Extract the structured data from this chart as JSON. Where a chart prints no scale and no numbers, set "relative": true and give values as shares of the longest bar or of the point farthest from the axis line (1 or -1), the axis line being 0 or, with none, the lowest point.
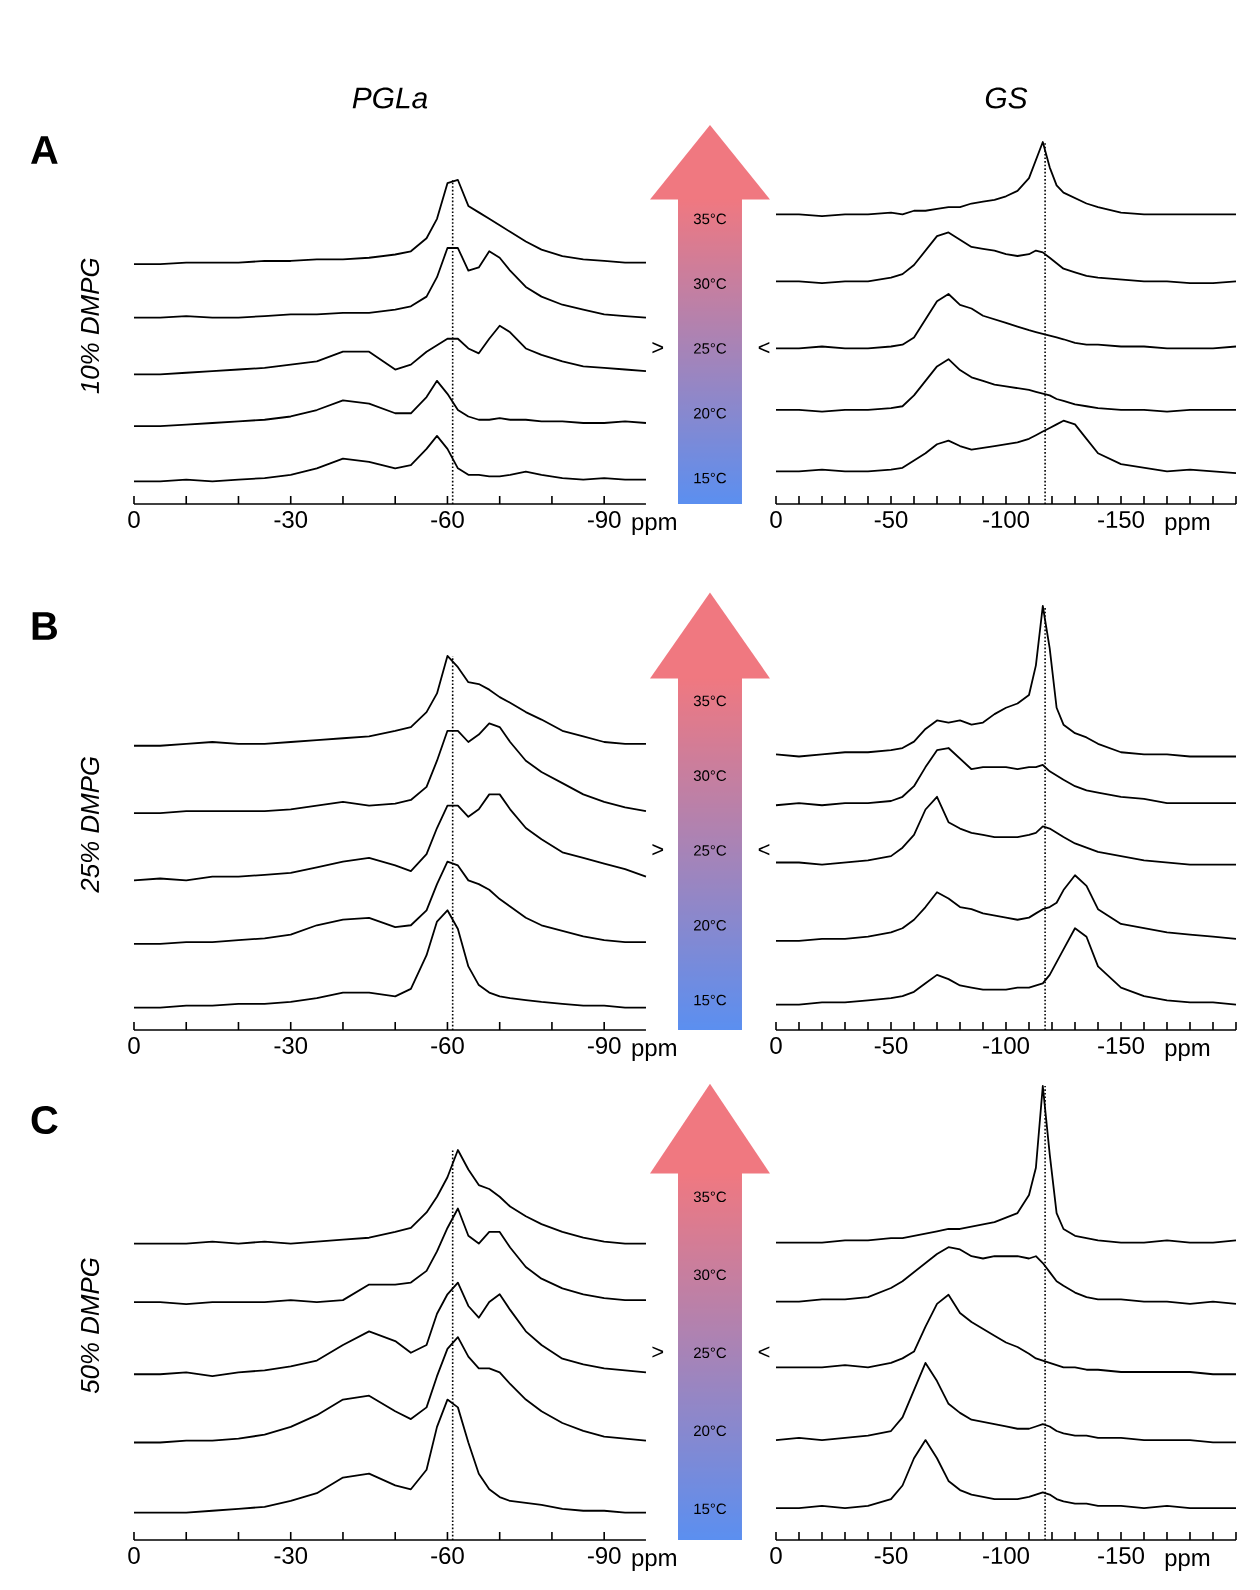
{
  "chart_data": [
    {
      "type": "line",
      "relative": true,
      "title": "PGLa",
      "ylabel": "10% DMPG",
      "xlabel": "ppm",
      "xlim": [
        0,
        -98
      ],
      "xticks": [
        0,
        {
          "value": -10,
          "label": null
        },
        {
          "value": -20,
          "label": null
        },
        -30,
        {
          "value": -40,
          "label": null
        },
        {
          "value": -50,
          "label": null
        },
        -60,
        {
          "value": -70,
          "label": null
        },
        {
          "value": -80,
          "label": null
        },
        -90
      ],
      "ref_lines": [
        {
          "axis": "x",
          "value": -61,
          "line_style": "dotted"
        }
      ],
      "annotations": [
        "A",
        "35°C",
        "30°C",
        "25°C",
        "20°C",
        "15°C",
        ">"
      ],
      "x": [
        0,
        -5,
        -10,
        -15,
        -20,
        -25,
        -30,
        -35,
        -40,
        -45,
        -50,
        -53,
        -56,
        -58,
        -60,
        -62,
        -64,
        -66,
        -68,
        -70,
        -72,
        -75,
        -78,
        -82,
        -86,
        -90,
        -94,
        -98
      ],
      "series": [
        {
          "color": "#000000",
          "values": [
            0.74,
            0.74,
            0.745,
            0.745,
            0.745,
            0.75,
            0.75,
            0.755,
            0.755,
            0.76,
            0.77,
            0.78,
            0.82,
            0.88,
            0.99,
            1.0,
            0.92,
            0.9,
            0.88,
            0.86,
            0.84,
            0.81,
            0.785,
            0.765,
            0.755,
            0.75,
            0.745,
            0.745
          ]
        },
        {
          "color": "#000000",
          "values": [
            0.575,
            0.575,
            0.58,
            0.575,
            0.575,
            0.58,
            0.585,
            0.585,
            0.59,
            0.59,
            0.6,
            0.61,
            0.64,
            0.7,
            0.79,
            0.79,
            0.72,
            0.73,
            0.78,
            0.76,
            0.72,
            0.67,
            0.64,
            0.615,
            0.6,
            0.585,
            0.58,
            0.575
          ]
        },
        {
          "color": "#000000",
          "values": [
            0.4,
            0.4,
            0.405,
            0.41,
            0.415,
            0.42,
            0.43,
            0.44,
            0.47,
            0.47,
            0.415,
            0.43,
            0.47,
            0.49,
            0.51,
            0.51,
            0.48,
            0.465,
            0.51,
            0.55,
            0.53,
            0.48,
            0.46,
            0.44,
            0.425,
            0.42,
            0.415,
            0.41
          ]
        },
        {
          "color": "#000000",
          "values": [
            0.24,
            0.24,
            0.245,
            0.25,
            0.255,
            0.26,
            0.27,
            0.29,
            0.32,
            0.31,
            0.28,
            0.28,
            0.33,
            0.38,
            0.34,
            0.29,
            0.27,
            0.26,
            0.26,
            0.265,
            0.26,
            0.26,
            0.255,
            0.255,
            0.25,
            0.25,
            0.255,
            0.25
          ]
        },
        {
          "color": "#000000",
          "values": [
            0.07,
            0.07,
            0.075,
            0.07,
            0.075,
            0.08,
            0.09,
            0.11,
            0.14,
            0.13,
            0.11,
            0.12,
            0.17,
            0.21,
            0.17,
            0.11,
            0.09,
            0.09,
            0.085,
            0.085,
            0.09,
            0.1,
            0.09,
            0.08,
            0.075,
            0.08,
            0.075,
            0.075
          ]
        }
      ]
    },
    {
      "type": "line",
      "relative": true,
      "title": "GS",
      "xlabel": "ppm",
      "xlim": [
        0,
        -200
      ],
      "xticks": [
        0,
        {
          "value": -10,
          "label": null
        },
        {
          "value": -20,
          "label": null
        },
        {
          "value": -30,
          "label": null
        },
        {
          "value": -40,
          "label": null
        },
        -50,
        {
          "value": -60,
          "label": null
        },
        {
          "value": -70,
          "label": null
        },
        {
          "value": -80,
          "label": null
        },
        {
          "value": -90,
          "label": null
        },
        -100,
        {
          "value": -110,
          "label": null
        },
        {
          "value": -120,
          "label": null
        },
        {
          "value": -130,
          "label": null
        },
        {
          "value": -140,
          "label": null
        },
        -150,
        {
          "value": -160,
          "label": null
        },
        {
          "value": -170,
          "label": null
        },
        {
          "value": -180,
          "label": null
        },
        {
          "value": -190,
          "label": null
        },
        {
          "value": -200,
          "label": null
        }
      ],
      "ref_lines": [
        {
          "axis": "x",
          "value": -117,
          "line_style": "dotted"
        }
      ],
      "annotations": [
        "<"
      ],
      "x": [
        0,
        -10,
        -20,
        -30,
        -40,
        -50,
        -55,
        -60,
        -65,
        -70,
        -75,
        -80,
        -85,
        -90,
        -95,
        -100,
        -105,
        -110,
        -113,
        -116,
        -119,
        -122,
        -125,
        -130,
        -135,
        -140,
        -150,
        -160,
        -170,
        -180,
        -190,
        -200
      ],
      "series": [
        {
          "color": "#000000",
          "values": [
            0.8,
            0.8,
            0.795,
            0.8,
            0.8,
            0.805,
            0.8,
            0.81,
            0.81,
            0.815,
            0.82,
            0.82,
            0.83,
            0.835,
            0.84,
            0.85,
            0.865,
            0.9,
            0.95,
            1.0,
            0.93,
            0.88,
            0.86,
            0.845,
            0.83,
            0.82,
            0.805,
            0.8,
            0.8,
            0.8,
            0.8,
            0.8
          ]
        },
        {
          "color": "#000000",
          "values": [
            0.615,
            0.615,
            0.61,
            0.615,
            0.615,
            0.625,
            0.635,
            0.66,
            0.7,
            0.74,
            0.75,
            0.73,
            0.71,
            0.705,
            0.7,
            0.69,
            0.685,
            0.69,
            0.7,
            0.695,
            0.68,
            0.665,
            0.65,
            0.64,
            0.63,
            0.625,
            0.62,
            0.615,
            0.615,
            0.61,
            0.61,
            0.615
          ]
        },
        {
          "color": "#000000",
          "values": [
            0.43,
            0.43,
            0.435,
            0.43,
            0.43,
            0.435,
            0.44,
            0.46,
            0.51,
            0.56,
            0.58,
            0.55,
            0.54,
            0.52,
            0.51,
            0.5,
            0.49,
            0.48,
            0.475,
            0.47,
            0.465,
            0.46,
            0.455,
            0.445,
            0.44,
            0.44,
            0.435,
            0.435,
            0.43,
            0.43,
            0.43,
            0.435
          ]
        },
        {
          "color": "#000000",
          "values": [
            0.26,
            0.26,
            0.255,
            0.26,
            0.26,
            0.265,
            0.27,
            0.3,
            0.34,
            0.38,
            0.4,
            0.37,
            0.35,
            0.34,
            0.33,
            0.325,
            0.32,
            0.315,
            0.31,
            0.305,
            0.3,
            0.29,
            0.285,
            0.275,
            0.27,
            0.265,
            0.26,
            0.26,
            0.255,
            0.26,
            0.26,
            0.26
          ]
        },
        {
          "color": "#000000",
          "values": [
            0.09,
            0.09,
            0.095,
            0.09,
            0.09,
            0.095,
            0.1,
            0.12,
            0.14,
            0.165,
            0.175,
            0.16,
            0.15,
            0.155,
            0.16,
            0.165,
            0.17,
            0.18,
            0.19,
            0.2,
            0.21,
            0.22,
            0.23,
            0.22,
            0.18,
            0.14,
            0.11,
            0.1,
            0.09,
            0.095,
            0.09,
            0.085
          ]
        }
      ]
    },
    {
      "type": "line",
      "relative": true,
      "ylabel": "25% DMPG",
      "xlabel": "ppm",
      "xlim": [
        0,
        -98
      ],
      "xticks": [
        0,
        {
          "value": -10,
          "label": null
        },
        {
          "value": -20,
          "label": null
        },
        -30,
        {
          "value": -40,
          "label": null
        },
        {
          "value": -50,
          "label": null
        },
        -60,
        {
          "value": -70,
          "label": null
        },
        {
          "value": -80,
          "label": null
        },
        -90
      ],
      "ref_lines": [
        {
          "axis": "x",
          "value": -61,
          "line_style": "dotted"
        }
      ],
      "annotations": [
        "B",
        "35°C",
        "30°C",
        "25°C",
        "20°C",
        "15°C",
        ">"
      ],
      "x": [
        0,
        -5,
        -10,
        -15,
        -20,
        -25,
        -30,
        -35,
        -40,
        -45,
        -50,
        -53,
        -56,
        -58,
        -60,
        -62,
        -64,
        -66,
        -68,
        -70,
        -72,
        -75,
        -78,
        -82,
        -86,
        -90,
        -94,
        -98
      ],
      "series": [
        {
          "color": "#000000",
          "values": [
            0.76,
            0.76,
            0.765,
            0.77,
            0.765,
            0.765,
            0.77,
            0.775,
            0.78,
            0.785,
            0.8,
            0.81,
            0.85,
            0.9,
            1.0,
            0.97,
            0.93,
            0.925,
            0.91,
            0.89,
            0.875,
            0.85,
            0.83,
            0.8,
            0.785,
            0.77,
            0.765,
            0.765
          ]
        },
        {
          "color": "#000000",
          "values": [
            0.58,
            0.58,
            0.585,
            0.585,
            0.585,
            0.585,
            0.59,
            0.6,
            0.61,
            0.6,
            0.605,
            0.615,
            0.65,
            0.72,
            0.8,
            0.8,
            0.77,
            0.79,
            0.82,
            0.81,
            0.77,
            0.72,
            0.69,
            0.66,
            0.63,
            0.61,
            0.595,
            0.585
          ]
        },
        {
          "color": "#000000",
          "values": [
            0.4,
            0.405,
            0.4,
            0.41,
            0.41,
            0.415,
            0.42,
            0.435,
            0.45,
            0.46,
            0.44,
            0.425,
            0.47,
            0.54,
            0.6,
            0.6,
            0.57,
            0.59,
            0.63,
            0.63,
            0.59,
            0.54,
            0.51,
            0.475,
            0.46,
            0.445,
            0.43,
            0.41
          ]
        },
        {
          "color": "#000000",
          "values": [
            0.23,
            0.23,
            0.235,
            0.235,
            0.24,
            0.245,
            0.255,
            0.28,
            0.295,
            0.3,
            0.275,
            0.28,
            0.32,
            0.39,
            0.45,
            0.44,
            0.4,
            0.39,
            0.375,
            0.35,
            0.33,
            0.3,
            0.28,
            0.265,
            0.25,
            0.24,
            0.235,
            0.235
          ]
        },
        {
          "color": "#000000",
          "values": [
            0.06,
            0.06,
            0.065,
            0.065,
            0.07,
            0.07,
            0.075,
            0.085,
            0.1,
            0.1,
            0.09,
            0.11,
            0.2,
            0.29,
            0.32,
            0.27,
            0.17,
            0.12,
            0.1,
            0.09,
            0.085,
            0.08,
            0.075,
            0.07,
            0.065,
            0.065,
            0.06,
            0.06
          ]
        }
      ]
    },
    {
      "type": "line",
      "relative": true,
      "xlabel": "ppm",
      "xlim": [
        0,
        -200
      ],
      "xticks": [
        0,
        {
          "value": -10,
          "label": null
        },
        {
          "value": -20,
          "label": null
        },
        {
          "value": -30,
          "label": null
        },
        {
          "value": -40,
          "label": null
        },
        -50,
        {
          "value": -60,
          "label": null
        },
        {
          "value": -70,
          "label": null
        },
        {
          "value": -80,
          "label": null
        },
        {
          "value": -90,
          "label": null
        },
        -100,
        {
          "value": -110,
          "label": null
        },
        {
          "value": -120,
          "label": null
        },
        {
          "value": -130,
          "label": null
        },
        {
          "value": -140,
          "label": null
        },
        -150,
        {
          "value": -160,
          "label": null
        },
        {
          "value": -170,
          "label": null
        },
        {
          "value": -180,
          "label": null
        },
        {
          "value": -190,
          "label": null
        },
        {
          "value": -200,
          "label": null
        }
      ],
      "ref_lines": [
        {
          "axis": "x",
          "value": -117,
          "line_style": "dotted"
        }
      ],
      "annotations": [
        "<"
      ],
      "x": [
        0,
        -10,
        -20,
        -30,
        -40,
        -50,
        -55,
        -60,
        -65,
        -70,
        -75,
        -80,
        -85,
        -90,
        -95,
        -100,
        -105,
        -110,
        -113,
        -116,
        -119,
        -122,
        -125,
        -130,
        -135,
        -140,
        -150,
        -160,
        -170,
        -180,
        -190,
        -200
      ],
      "series": [
        {
          "color": "#000000",
          "values": [
            0.65,
            0.645,
            0.65,
            0.655,
            0.655,
            0.66,
            0.665,
            0.68,
            0.71,
            0.73,
            0.725,
            0.73,
            0.72,
            0.725,
            0.745,
            0.76,
            0.77,
            0.79,
            0.86,
            1.0,
            0.9,
            0.76,
            0.72,
            0.7,
            0.69,
            0.675,
            0.655,
            0.65,
            0.65,
            0.645,
            0.645,
            0.645
          ]
        },
        {
          "color": "#000000",
          "values": [
            0.53,
            0.535,
            0.53,
            0.535,
            0.535,
            0.54,
            0.55,
            0.575,
            0.62,
            0.66,
            0.665,
            0.64,
            0.615,
            0.62,
            0.62,
            0.62,
            0.615,
            0.62,
            0.62,
            0.625,
            0.61,
            0.6,
            0.59,
            0.575,
            0.565,
            0.56,
            0.55,
            0.545,
            0.535,
            0.535,
            0.535,
            0.535
          ]
        },
        {
          "color": "#000000",
          "values": [
            0.395,
            0.395,
            0.39,
            0.395,
            0.4,
            0.41,
            0.43,
            0.46,
            0.52,
            0.55,
            0.49,
            0.475,
            0.465,
            0.46,
            0.455,
            0.455,
            0.455,
            0.46,
            0.465,
            0.48,
            0.475,
            0.465,
            0.455,
            0.44,
            0.43,
            0.42,
            0.41,
            0.4,
            0.395,
            0.39,
            0.39,
            0.39
          ]
        },
        {
          "color": "#000000",
          "values": [
            0.21,
            0.21,
            0.215,
            0.215,
            0.22,
            0.23,
            0.24,
            0.26,
            0.29,
            0.325,
            0.31,
            0.29,
            0.285,
            0.275,
            0.27,
            0.265,
            0.26,
            0.265,
            0.275,
            0.285,
            0.29,
            0.3,
            0.33,
            0.365,
            0.34,
            0.285,
            0.25,
            0.24,
            0.23,
            0.225,
            0.22,
            0.215
          ]
        },
        {
          "color": "#000000",
          "values": [
            0.06,
            0.06,
            0.065,
            0.065,
            0.07,
            0.075,
            0.08,
            0.09,
            0.11,
            0.13,
            0.12,
            0.105,
            0.1,
            0.095,
            0.095,
            0.095,
            0.1,
            0.1,
            0.105,
            0.11,
            0.13,
            0.16,
            0.19,
            0.24,
            0.22,
            0.15,
            0.1,
            0.08,
            0.07,
            0.065,
            0.065,
            0.06
          ]
        }
      ]
    },
    {
      "type": "line",
      "relative": true,
      "ylabel": "50% DMPG",
      "xlabel": "ppm",
      "xlim": [
        0,
        -98
      ],
      "xticks": [
        0,
        {
          "value": -10,
          "label": null
        },
        {
          "value": -20,
          "label": null
        },
        -30,
        {
          "value": -40,
          "label": null
        },
        {
          "value": -50,
          "label": null
        },
        -60,
        {
          "value": -70,
          "label": null
        },
        {
          "value": -80,
          "label": null
        },
        -90
      ],
      "ref_lines": [
        {
          "axis": "x",
          "value": -61,
          "line_style": "dotted"
        }
      ],
      "annotations": [
        "C",
        "35°C",
        "30°C",
        "25°C",
        "20°C",
        "15°C",
        ">"
      ],
      "x": [
        0,
        -5,
        -10,
        -15,
        -20,
        -25,
        -30,
        -35,
        -40,
        -45,
        -50,
        -53,
        -56,
        -58,
        -60,
        -62,
        -64,
        -66,
        -68,
        -70,
        -72,
        -75,
        -78,
        -82,
        -86,
        -90,
        -94,
        -98
      ],
      "series": [
        {
          "color": "#000000",
          "values": [
            0.76,
            0.76,
            0.76,
            0.765,
            0.76,
            0.765,
            0.76,
            0.765,
            0.77,
            0.775,
            0.79,
            0.8,
            0.84,
            0.88,
            0.93,
            1.0,
            0.95,
            0.91,
            0.9,
            0.88,
            0.855,
            0.83,
            0.81,
            0.79,
            0.775,
            0.765,
            0.76,
            0.76
          ]
        },
        {
          "color": "#000000",
          "values": [
            0.61,
            0.61,
            0.605,
            0.61,
            0.61,
            0.61,
            0.615,
            0.61,
            0.615,
            0.655,
            0.655,
            0.66,
            0.69,
            0.74,
            0.8,
            0.85,
            0.78,
            0.76,
            0.79,
            0.79,
            0.75,
            0.7,
            0.67,
            0.645,
            0.63,
            0.62,
            0.615,
            0.615
          ]
        },
        {
          "color": "#000000",
          "values": [
            0.425,
            0.425,
            0.43,
            0.42,
            0.43,
            0.435,
            0.445,
            0.46,
            0.5,
            0.535,
            0.51,
            0.48,
            0.5,
            0.58,
            0.63,
            0.66,
            0.6,
            0.57,
            0.61,
            0.63,
            0.59,
            0.535,
            0.5,
            0.465,
            0.45,
            0.44,
            0.435,
            0.43
          ]
        },
        {
          "color": "#000000",
          "values": [
            0.25,
            0.25,
            0.255,
            0.255,
            0.26,
            0.27,
            0.29,
            0.32,
            0.36,
            0.37,
            0.33,
            0.31,
            0.34,
            0.42,
            0.49,
            0.52,
            0.47,
            0.44,
            0.44,
            0.43,
            0.4,
            0.36,
            0.33,
            0.3,
            0.28,
            0.265,
            0.26,
            0.255
          ]
        },
        {
          "color": "#000000",
          "values": [
            0.07,
            0.07,
            0.07,
            0.075,
            0.08,
            0.085,
            0.1,
            0.12,
            0.16,
            0.17,
            0.14,
            0.13,
            0.18,
            0.29,
            0.36,
            0.34,
            0.25,
            0.17,
            0.13,
            0.11,
            0.1,
            0.095,
            0.09,
            0.08,
            0.075,
            0.075,
            0.07,
            0.07
          ]
        }
      ]
    },
    {
      "type": "line",
      "relative": true,
      "xlabel": "ppm",
      "xlim": [
        0,
        -200
      ],
      "xticks": [
        0,
        {
          "value": -10,
          "label": null
        },
        {
          "value": -20,
          "label": null
        },
        {
          "value": -30,
          "label": null
        },
        {
          "value": -40,
          "label": null
        },
        -50,
        {
          "value": -60,
          "label": null
        },
        {
          "value": -70,
          "label": null
        },
        {
          "value": -80,
          "label": null
        },
        {
          "value": -90,
          "label": null
        },
        -100,
        {
          "value": -110,
          "label": null
        },
        {
          "value": -120,
          "label": null
        },
        {
          "value": -130,
          "label": null
        },
        {
          "value": -140,
          "label": null
        },
        -150,
        {
          "value": -160,
          "label": null
        },
        {
          "value": -170,
          "label": null
        },
        {
          "value": -180,
          "label": null
        },
        {
          "value": -190,
          "label": null
        },
        {
          "value": -200,
          "label": null
        }
      ],
      "ref_lines": [
        {
          "axis": "x",
          "value": -117,
          "line_style": "dotted"
        }
      ],
      "annotations": [
        "<"
      ],
      "x": [
        0,
        -10,
        -20,
        -30,
        -40,
        -50,
        -55,
        -60,
        -65,
        -70,
        -75,
        -80,
        -85,
        -90,
        -95,
        -100,
        -105,
        -110,
        -113,
        -116,
        -119,
        -122,
        -125,
        -130,
        -135,
        -140,
        -150,
        -160,
        -170,
        -180,
        -190,
        -200
      ],
      "series": [
        {
          "color": "#000000",
          "values": [
            0.655,
            0.655,
            0.655,
            0.66,
            0.66,
            0.665,
            0.665,
            0.67,
            0.675,
            0.68,
            0.685,
            0.685,
            0.69,
            0.695,
            0.7,
            0.71,
            0.72,
            0.76,
            0.82,
            1.0,
            0.85,
            0.72,
            0.685,
            0.67,
            0.665,
            0.66,
            0.655,
            0.655,
            0.66,
            0.655,
            0.655,
            0.66
          ]
        },
        {
          "color": "#000000",
          "values": [
            0.525,
            0.525,
            0.53,
            0.53,
            0.535,
            0.555,
            0.57,
            0.59,
            0.61,
            0.63,
            0.645,
            0.64,
            0.625,
            0.62,
            0.625,
            0.625,
            0.625,
            0.62,
            0.625,
            0.61,
            0.59,
            0.57,
            0.56,
            0.545,
            0.535,
            0.53,
            0.53,
            0.525,
            0.525,
            0.52,
            0.525,
            0.52
          ]
        },
        {
          "color": "#000000",
          "values": [
            0.38,
            0.38,
            0.38,
            0.385,
            0.38,
            0.39,
            0.4,
            0.415,
            0.47,
            0.52,
            0.54,
            0.5,
            0.48,
            0.465,
            0.45,
            0.435,
            0.425,
            0.41,
            0.4,
            0.395,
            0.39,
            0.385,
            0.38,
            0.38,
            0.375,
            0.375,
            0.37,
            0.37,
            0.37,
            0.37,
            0.365,
            0.365
          ]
        },
        {
          "color": "#000000",
          "values": [
            0.22,
            0.225,
            0.22,
            0.225,
            0.23,
            0.24,
            0.27,
            0.33,
            0.39,
            0.35,
            0.3,
            0.28,
            0.265,
            0.26,
            0.255,
            0.25,
            0.245,
            0.245,
            0.25,
            0.255,
            0.25,
            0.24,
            0.235,
            0.23,
            0.23,
            0.225,
            0.225,
            0.22,
            0.22,
            0.22,
            0.215,
            0.215
          ]
        },
        {
          "color": "#000000",
          "values": [
            0.07,
            0.07,
            0.075,
            0.07,
            0.075,
            0.09,
            0.12,
            0.18,
            0.22,
            0.18,
            0.13,
            0.11,
            0.1,
            0.095,
            0.09,
            0.09,
            0.09,
            0.095,
            0.1,
            0.105,
            0.1,
            0.09,
            0.085,
            0.08,
            0.08,
            0.075,
            0.075,
            0.07,
            0.075,
            0.07,
            0.07,
            0.07
          ]
        }
      ]
    }
  ]
}
